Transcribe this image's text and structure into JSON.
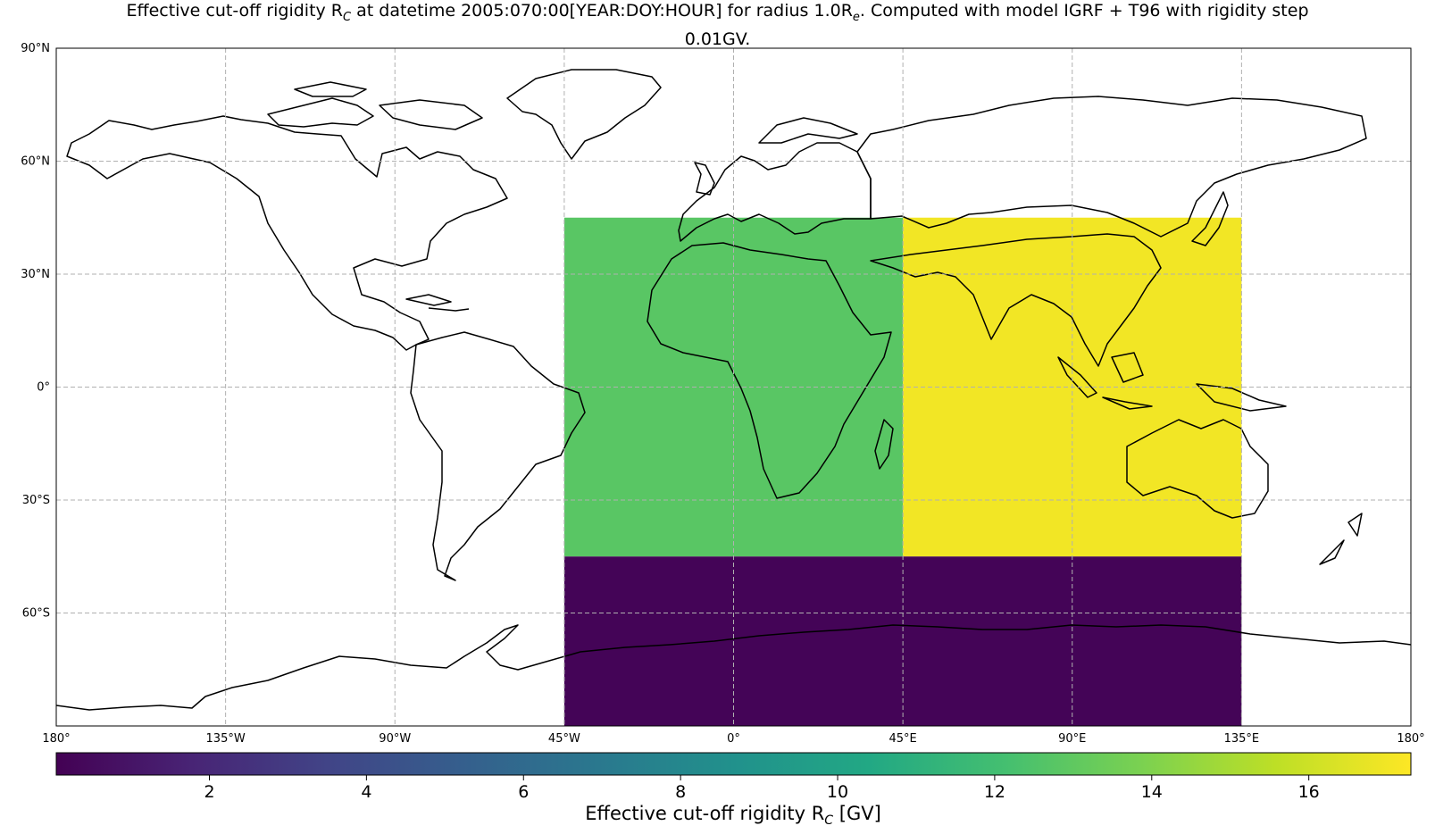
{
  "title": {
    "line1": "Effective cut-off rigidity R",
    "sub1": "C",
    "line1b": " at datetime 2005:070:00[YEAR:DOY:HOUR] for radius 1.0R",
    "sub2": "e",
    "line1c": ". Computed with model IGRF + T96 with rigidity step",
    "line2": "0.01GV."
  },
  "map": {
    "projection": "PlateCarree",
    "lon_range": [
      -180,
      180
    ],
    "lat_range": [
      -90,
      90
    ],
    "gridlines": true,
    "lat_ticks": [
      {
        "value": 90,
        "label": "90°N"
      },
      {
        "value": 60,
        "label": "60°N"
      },
      {
        "value": 30,
        "label": "30°N"
      },
      {
        "value": 0,
        "label": "0°"
      },
      {
        "value": -30,
        "label": "30°S"
      },
      {
        "value": -60,
        "label": "60°S"
      }
    ],
    "lon_ticks": [
      {
        "value": -180,
        "label": "180°"
      },
      {
        "value": -135,
        "label": "135°W"
      },
      {
        "value": -90,
        "label": "90°W"
      },
      {
        "value": -45,
        "label": "45°W"
      },
      {
        "value": 0,
        "label": "0°"
      },
      {
        "value": 45,
        "label": "45°E"
      },
      {
        "value": 90,
        "label": "90°E"
      },
      {
        "value": 135,
        "label": "135°E"
      },
      {
        "value": 180,
        "label": "180°"
      }
    ],
    "cells": [
      {
        "lon": [
          -45,
          45
        ],
        "lat": [
          -45,
          45
        ],
        "rigidity": 12.8
      },
      {
        "lon": [
          45,
          135
        ],
        "lat": [
          -45,
          45
        ],
        "rigidity": 17.0
      },
      {
        "lon": [
          -45,
          135
        ],
        "lat": [
          -90,
          -45
        ],
        "rigidity": 0.2
      }
    ]
  },
  "colorbar": {
    "label_pre": "Effective cut-off rigidity R",
    "label_sub": "C",
    "label_post": " [GV]",
    "range": [
      0.05,
      17.3
    ],
    "colormap": "viridis",
    "ticks": [
      {
        "value": 2,
        "label": "2"
      },
      {
        "value": 4,
        "label": "4"
      },
      {
        "value": 6,
        "label": "6"
      },
      {
        "value": 8,
        "label": "8"
      },
      {
        "value": 10,
        "label": "10"
      },
      {
        "value": 12,
        "label": "12"
      },
      {
        "value": 14,
        "label": "14"
      },
      {
        "value": 16,
        "label": "16"
      }
    ]
  }
}
